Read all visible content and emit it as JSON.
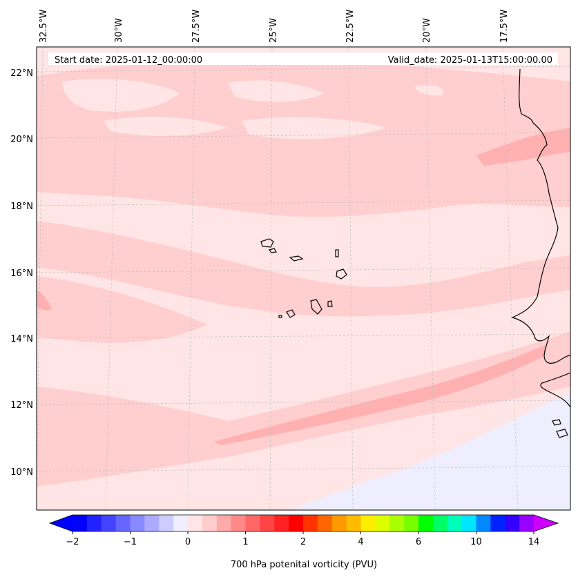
{
  "header": {
    "start_date": "Start date: 2025-01-12_00:00:00",
    "valid_date": "Valid_date: 2025-01-13T15:00:00.00"
  },
  "map": {
    "variable": "700 hPa potential vorticity",
    "lon_labels": [
      "32.5°W",
      "30°W",
      "27.5°W",
      "25°W",
      "22.5°W",
      "20°W",
      "17.5°W"
    ],
    "lat_labels": [
      "22°N",
      "20°N",
      "18°N",
      "16°N",
      "14°N",
      "12°N",
      "10°N"
    ],
    "lon_range": [
      -32.5,
      -15.5
    ],
    "lat_range": [
      9,
      22.8
    ],
    "gridlines": true,
    "colors": {
      "background_pv": "#ffe5e5",
      "pv_0_25_to_0_5": "#ffcece",
      "pv_0_5_to_0_75": "#ffb1b1",
      "pv_negative_weak": "#eeeefe",
      "coastline": "#000000",
      "gridline": "#bbbbbb"
    }
  },
  "colorbar": {
    "label": "700 hPa potenital vorticity (PVU)",
    "ticks": [
      "−2",
      "−1",
      "0",
      "1",
      "2",
      "4",
      "6",
      "10",
      "14"
    ],
    "extend": "both",
    "colors": [
      "#0000ff",
      "#2222ff",
      "#4444ff",
      "#6666ff",
      "#8888ff",
      "#aaaaff",
      "#ccccff",
      "#eeeeff",
      "#ffe5e5",
      "#ffcccc",
      "#ffaaaa",
      "#ff8888",
      "#ff6666",
      "#ff4444",
      "#ff2222",
      "#ff0000",
      "#ff3300",
      "#ff6600",
      "#ff9900",
      "#ffbb00",
      "#ffee00",
      "#ddff00",
      "#aaff00",
      "#77ff00",
      "#00ff00",
      "#00ff66",
      "#00ffbb",
      "#00e5ff",
      "#0088ff",
      "#0022ff",
      "#3300ff",
      "#9900ff"
    ],
    "under_color": "#0000ff",
    "over_color": "#cc00ff"
  }
}
